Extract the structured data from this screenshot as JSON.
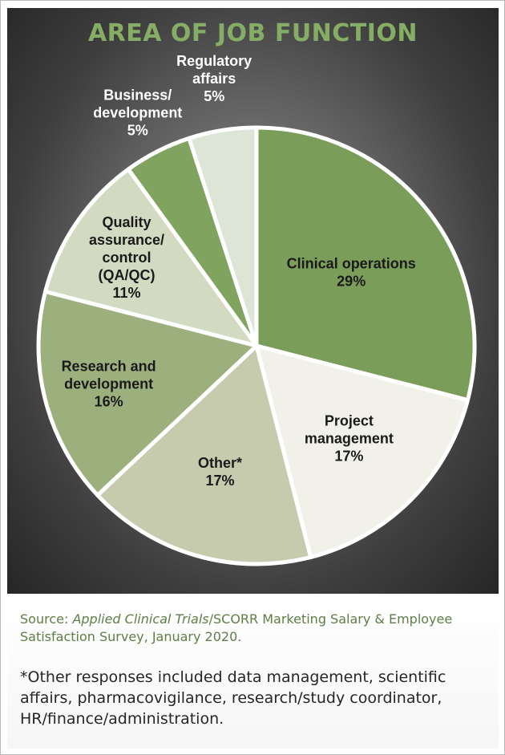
{
  "chart_data": {
    "type": "pie",
    "title": "AREA OF JOB FUNCTION",
    "slices": [
      {
        "label": "Clinical operations",
        "label_lines": [
          "Clinical operations"
        ],
        "value": 29,
        "value_label": "29%",
        "color": "#7b9d5a"
      },
      {
        "label": "Project management",
        "label_lines": [
          "Project",
          "management"
        ],
        "value": 17,
        "value_label": "17%",
        "color": "#f1f1ea"
      },
      {
        "label": "Other*",
        "label_lines": [
          "Other*"
        ],
        "value": 17,
        "value_label": "17%",
        "color": "#c6cbad"
      },
      {
        "label": "Research and development",
        "label_lines": [
          "Research and",
          "development"
        ],
        "value": 16,
        "value_label": "16%",
        "color": "#9cb07d"
      },
      {
        "label": "Quality assurance/control (QA/QC)",
        "label_lines": [
          "Quality",
          "assurance/",
          "control",
          "(QA/QC)"
        ],
        "value": 11,
        "value_label": "11%",
        "color": "#d3dac2"
      },
      {
        "label": "Business/development",
        "label_lines": [
          "Business/",
          "development"
        ],
        "value": 5,
        "value_label": "5%",
        "color": "#80a45f"
      },
      {
        "label": "Regulatory affairs",
        "label_lines": [
          "Regulatory",
          "affairs"
        ],
        "value": 5,
        "value_label": "5%",
        "color": "#dde6d6"
      }
    ],
    "start_angle_deg": 0,
    "direction": "clockwise",
    "slice_border_color": "#ffffff",
    "legend": "none"
  },
  "source": {
    "prefix": "Source: ",
    "publication": "Applied Clinical Trials",
    "suffix": "/SCORR Marketing Salary & Employee Satisfaction Survey, January 2020."
  },
  "footnote": "*Other responses included data management, scientific affairs, pharmacovigilance, research/study coordinator, HR/finance/administration.",
  "colors": {
    "title": "#86ad66",
    "source_text": "#5d7f46",
    "footnote_text": "#262626",
    "panel_dark": "#2b2b2b"
  }
}
